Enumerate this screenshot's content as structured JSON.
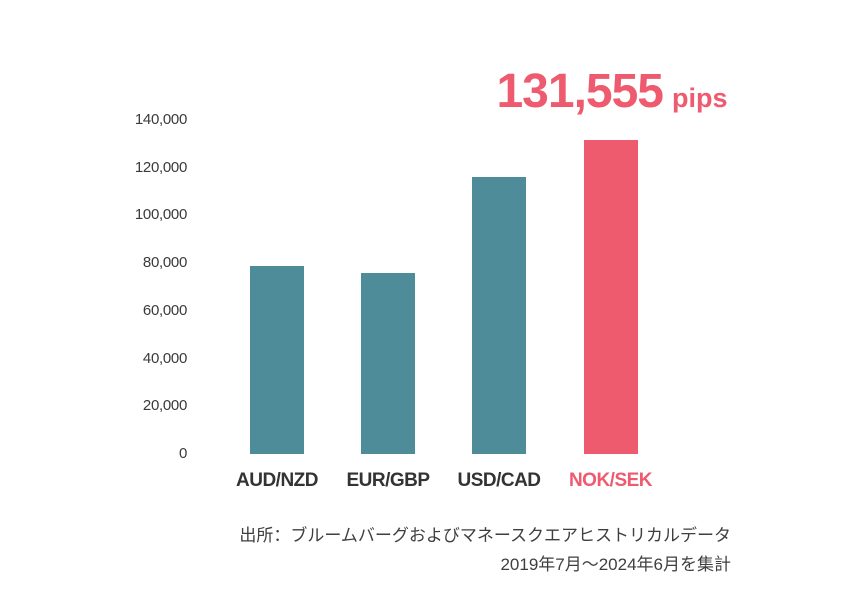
{
  "callout": {
    "value": "131,555",
    "unit": "pips"
  },
  "chart_data": {
    "type": "bar",
    "title": "",
    "xlabel": "",
    "ylabel": "",
    "categories": [
      "AUD/NZD",
      "EUR/GBP",
      "USD/CAD",
      "NOK/SEK"
    ],
    "values": [
      78800,
      75800,
      116300,
      131555
    ],
    "value_label_shown": "131,555 pips",
    "highlight_index": 3,
    "highlight_category": "NOK/SEK",
    "ylim": [
      0,
      140000
    ],
    "y_tick_labels_top_to_bottom": [
      "140,000",
      "120,000",
      "100,000",
      "80,000",
      "60,000",
      "40,000",
      "20,000",
      "0"
    ],
    "grid": false,
    "legend": false
  },
  "source": {
    "line1": "出所：ブルームバーグおよびマネースクエアヒストリカルデータ",
    "line2": "2019年7月～2024年6月を集計"
  },
  "colors": {
    "bar": "#4e8c9a",
    "highlight": "#ee5a6e",
    "axis_text": "#3a3a3a",
    "label_text": "#333333",
    "source_text": "#3f3f3f"
  }
}
